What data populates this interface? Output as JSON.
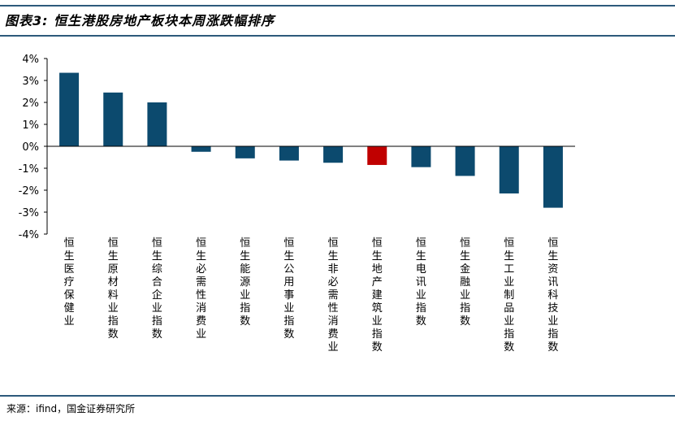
{
  "header": {
    "title": "图表3: 恒生港股房地产板块本周涨跌幅排序"
  },
  "footer": {
    "source": "来源：ifind，国金证券研究所"
  },
  "colors": {
    "default_bar": "#0c4a6e",
    "highlight_bar": "#c00000",
    "rule": "#2d5a7b"
  },
  "chart_data": {
    "type": "bar",
    "title": "",
    "xlabel": "",
    "ylabel": "",
    "ylim": [
      -4,
      4
    ],
    "y_ticks": [
      "4%",
      "3%",
      "2%",
      "1%",
      "0%",
      "-1%",
      "-2%",
      "-3%",
      "-4%"
    ],
    "y_tick_values": [
      4,
      3,
      2,
      1,
      0,
      -1,
      -2,
      -3,
      -4
    ],
    "categories": [
      "恒生医疗保健业",
      "恒生原材料业指数",
      "恒生综合企业指数",
      "恒生必需性消费业",
      "恒生能源业指数",
      "恒生公用事业指数",
      "恒生非必需性消费业",
      "恒生地产建筑业指数",
      "恒生电讯业指数",
      "恒生金融业指数",
      "恒生工业制品业指数",
      "恒生资讯科技业指数"
    ],
    "values": [
      3.35,
      2.45,
      2.0,
      -0.25,
      -0.55,
      -0.65,
      -0.75,
      -0.85,
      -0.95,
      -1.35,
      -2.15,
      -2.8
    ],
    "highlight_index": 7,
    "grid": false,
    "legend": "none"
  }
}
